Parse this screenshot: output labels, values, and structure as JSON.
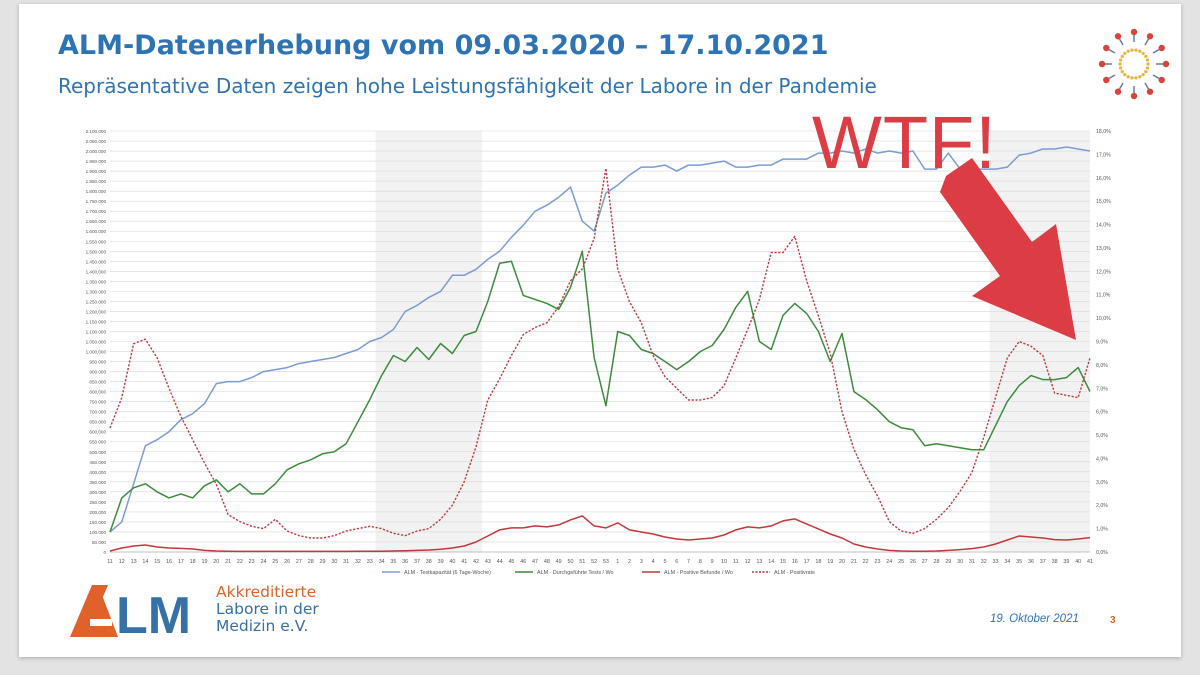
{
  "slide": {
    "title": "ALM-Datenerhebung vom 09.03.2020 – 17.10.2021",
    "subtitle": "Repräsentative Daten zeigen hohe Leistungsfähigkeit der Labore in der Pandemie",
    "date": "19. Oktober 2021",
    "page_number": "3",
    "logo": {
      "mark_text": "ALM",
      "line1": "Akkreditierte",
      "line2": "Labore in der",
      "line3": "Medizin e.V.",
      "orange": "#e0622a",
      "blue": "#3570a6"
    },
    "annotation": {
      "text": "WTF!",
      "color": "#dc3c43"
    }
  },
  "chart_data": {
    "type": "line",
    "x": [
      "11",
      "12",
      "13",
      "14",
      "15",
      "16",
      "17",
      "18",
      "19",
      "20",
      "21",
      "22",
      "23",
      "24",
      "25",
      "26",
      "27",
      "28",
      "29",
      "30",
      "31",
      "32",
      "33",
      "34",
      "35",
      "36",
      "37",
      "38",
      "39",
      "40",
      "41",
      "42",
      "43",
      "44",
      "45",
      "46",
      "47",
      "48",
      "49",
      "50",
      "51",
      "52",
      "53",
      "1",
      "2",
      "3",
      "4",
      "5",
      "6",
      "7",
      "8",
      "9",
      "10",
      "11",
      "12",
      "13",
      "14",
      "15",
      "16",
      "17",
      "18",
      "19",
      "20",
      "21",
      "22",
      "23",
      "24",
      "25",
      "26",
      "27",
      "28",
      "29",
      "30",
      "31",
      "32",
      "33",
      "34",
      "35",
      "36",
      "37",
      "38",
      "39",
      "40",
      "41"
    ],
    "shaded_ranges": [
      [
        "34",
        "42"
      ],
      [
        "33",
        "41"
      ]
    ],
    "ylim_left": [
      0,
      2100000
    ],
    "yticks_left": [
      "0",
      "50.000",
      "100.000",
      "150.000",
      "200.000",
      "250.000",
      "300.000",
      "350.000",
      "400.000",
      "450.000",
      "500.000",
      "550.000",
      "600.000",
      "650.000",
      "700.000",
      "750.000",
      "800.000",
      "850.000",
      "900.000",
      "950.000",
      "1.000.000",
      "1.050.000",
      "1.100.000",
      "1.150.000",
      "1.200.000",
      "1.250.000",
      "1.300.000",
      "1.350.000",
      "1.400.000",
      "1.450.000",
      "1.500.000",
      "1.550.000",
      "1.600.000",
      "1.650.000",
      "1.700.000",
      "1.750.000",
      "1.800.000",
      "1.850.000",
      "1.900.000",
      "1.950.000",
      "2.000.000",
      "2.050.000",
      "2.100.000"
    ],
    "ylim_right": [
      0,
      18
    ],
    "yticks_right": [
      "0,0%",
      "1,0%",
      "2,0%",
      "3,0%",
      "4,0%",
      "5,0%",
      "6,0%",
      "7,0%",
      "8,0%",
      "9,0%",
      "10,0%",
      "11,0%",
      "12,0%",
      "13,0%",
      "14,0%",
      "15,0%",
      "16,0%",
      "17,0%",
      "18,0%"
    ],
    "grid": true,
    "legend_position": "bottom",
    "series": [
      {
        "name": "ALM - Testkapazität (6 Tage-Woche)",
        "axis": "left",
        "style": "solid",
        "color": "#7a9cd4",
        "values": [
          100000,
          150000,
          340000,
          530000,
          560000,
          600000,
          660000,
          690000,
          740000,
          840000,
          850000,
          850000,
          870000,
          900000,
          910000,
          920000,
          940000,
          950000,
          960000,
          970000,
          990000,
          1010000,
          1050000,
          1070000,
          1110000,
          1200000,
          1230000,
          1270000,
          1300000,
          1380000,
          1380000,
          1410000,
          1460000,
          1500000,
          1570000,
          1630000,
          1700000,
          1730000,
          1770000,
          1820000,
          1650000,
          1600000,
          1790000,
          1830000,
          1880000,
          1920000,
          1920000,
          1930000,
          1900000,
          1930000,
          1930000,
          1940000,
          1950000,
          1920000,
          1920000,
          1930000,
          1930000,
          1960000,
          1960000,
          1960000,
          1990000,
          1990000,
          2000000,
          1990000,
          2010000,
          1990000,
          2000000,
          1990000,
          2000000,
          1910000,
          1910000,
          1990000,
          1910000,
          1910000,
          1910000,
          1910000,
          1920000,
          1980000,
          1990000,
          2010000,
          2010000,
          2020000,
          2010000,
          2000000
        ]
      },
      {
        "name": "ALM - Durchgeführte Tests / Wo",
        "axis": "left",
        "style": "solid",
        "color": "#3c8c3c",
        "values": [
          100000,
          270000,
          320000,
          340000,
          300000,
          270000,
          290000,
          270000,
          330000,
          360000,
          300000,
          340000,
          290000,
          290000,
          340000,
          410000,
          440000,
          460000,
          490000,
          500000,
          540000,
          650000,
          760000,
          880000,
          980000,
          950000,
          1020000,
          960000,
          1040000,
          990000,
          1080000,
          1100000,
          1250000,
          1440000,
          1450000,
          1280000,
          1260000,
          1240000,
          1210000,
          1320000,
          1500000,
          970000,
          730000,
          1100000,
          1080000,
          1010000,
          990000,
          950000,
          910000,
          950000,
          1000000,
          1030000,
          1110000,
          1220000,
          1300000,
          1050000,
          1010000,
          1180000,
          1240000,
          1190000,
          1100000,
          950000,
          1090000,
          800000,
          760000,
          710000,
          650000,
          620000,
          610000,
          530000,
          540000,
          530000,
          520000,
          510000,
          510000,
          630000,
          750000,
          830000,
          880000,
          860000,
          860000,
          870000,
          920000,
          800000
        ]
      },
      {
        "name": "ALM - Positive Befunde / Wo",
        "axis": "left",
        "style": "solid",
        "color": "#c0393b",
        "values": [
          5000,
          20000,
          30000,
          35000,
          25000,
          20000,
          18000,
          15000,
          8000,
          5000,
          4000,
          3000,
          3000,
          3000,
          3000,
          3000,
          3000,
          3000,
          3000,
          3000,
          3000,
          4000,
          4000,
          4000,
          5000,
          6000,
          8000,
          10000,
          14000,
          20000,
          30000,
          50000,
          80000,
          110000,
          120000,
          120000,
          130000,
          125000,
          135000,
          160000,
          180000,
          130000,
          120000,
          145000,
          110000,
          100000,
          90000,
          75000,
          65000,
          60000,
          65000,
          70000,
          85000,
          110000,
          125000,
          120000,
          130000,
          155000,
          165000,
          140000,
          115000,
          90000,
          70000,
          40000,
          25000,
          15000,
          8000,
          5000,
          4000,
          4000,
          5000,
          8000,
          12000,
          17000,
          25000,
          40000,
          60000,
          80000,
          75000,
          70000,
          62000,
          60000,
          65000,
          72000
        ]
      },
      {
        "name": "ALM - Positivrate",
        "axis": "right",
        "style": "dashed",
        "color": "#c0393b",
        "values": [
          5.3,
          6.6,
          8.9,
          9.1,
          8.3,
          7.0,
          5.8,
          4.8,
          3.8,
          2.9,
          1.6,
          1.3,
          1.1,
          1.0,
          1.4,
          0.9,
          0.7,
          0.6,
          0.6,
          0.7,
          0.9,
          1.0,
          1.1,
          1.0,
          0.8,
          0.7,
          0.9,
          1.0,
          1.4,
          2.0,
          3.0,
          4.5,
          6.5,
          7.4,
          8.4,
          9.3,
          9.6,
          9.8,
          10.5,
          11.6,
          12.1,
          13.4,
          16.4,
          12.1,
          10.7,
          9.8,
          8.4,
          7.5,
          7.0,
          6.5,
          6.5,
          6.6,
          7.1,
          8.3,
          9.5,
          10.8,
          12.8,
          12.8,
          13.5,
          11.6,
          10.1,
          8.5,
          6.0,
          4.4,
          3.3,
          2.4,
          1.3,
          0.9,
          0.8,
          1.0,
          1.4,
          1.9,
          2.6,
          3.4,
          4.9,
          6.6,
          8.3,
          9.0,
          8.8,
          8.4,
          6.8,
          6.7,
          6.6,
          8.3
        ]
      }
    ]
  }
}
